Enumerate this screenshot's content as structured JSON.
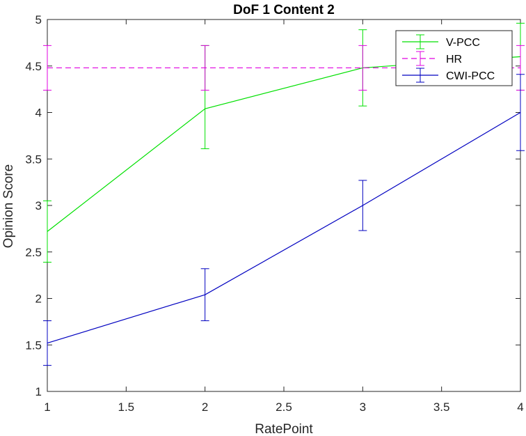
{
  "chart_data": {
    "type": "line",
    "title": "DoF 1 Content 2",
    "xlabel": "RatePoint",
    "ylabel": "Opinion Score",
    "xlim": [
      1,
      4
    ],
    "ylim": [
      1,
      5
    ],
    "x_ticks": [
      "1",
      "1.5",
      "2",
      "2.5",
      "3",
      "3.5",
      "4"
    ],
    "y_ticks": [
      "1",
      "1.5",
      "2",
      "2.5",
      "3",
      "3.5",
      "4",
      "4.5",
      "5"
    ],
    "grid": false,
    "legend_position": "top-right",
    "series": [
      {
        "name": "V-PCC",
        "color": "#00e000",
        "dash": "solid",
        "x": [
          1,
          2,
          3,
          4
        ],
        "y": [
          2.72,
          4.04,
          4.48,
          4.6
        ],
        "err_low": [
          2.39,
          3.61,
          4.07,
          4.24
        ],
        "err_high": [
          3.05,
          4.72,
          4.89,
          4.96
        ]
      },
      {
        "name": "HR",
        "color": "#e000e0",
        "dash": "dashed",
        "x": [
          1,
          2,
          3,
          4
        ],
        "y": [
          4.48,
          4.48,
          4.48,
          4.48
        ],
        "err_low": [
          4.24,
          4.24,
          4.24,
          4.24
        ],
        "err_high": [
          4.72,
          4.72,
          4.72,
          4.72
        ]
      },
      {
        "name": "CWI-PCC",
        "color": "#0000c0",
        "dash": "solid",
        "x": [
          1,
          2,
          3,
          4
        ],
        "y": [
          1.52,
          2.04,
          3.0,
          4.0
        ],
        "err_low": [
          1.28,
          1.76,
          2.73,
          3.59
        ],
        "err_high": [
          1.76,
          2.32,
          3.27,
          4.41
        ]
      }
    ]
  }
}
